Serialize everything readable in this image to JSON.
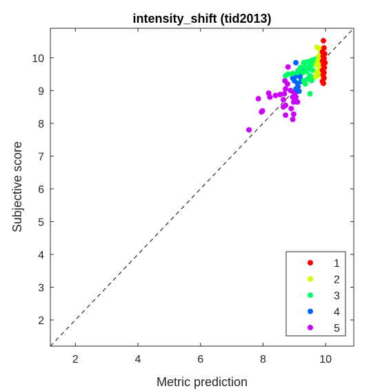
{
  "chart_data": {
    "type": "scatter",
    "title": "intensity_shift (tid2013)",
    "xlabel": "Metric prediction",
    "ylabel": "Subjective score",
    "xlim": [
      1.2,
      10.9
    ],
    "ylim": [
      1.2,
      10.9
    ],
    "xticks": [
      2,
      4,
      6,
      8,
      10
    ],
    "yticks": [
      2,
      3,
      4,
      5,
      6,
      7,
      8,
      9,
      10
    ],
    "grid": false,
    "legend_position": "bottom-right",
    "reference_line": "y = x (dashed)",
    "series": [
      {
        "name": "1",
        "color": "#ff0000",
        "points": [
          [
            9.93,
            10.52
          ],
          [
            9.95,
            10.3
          ],
          [
            9.9,
            10.18
          ],
          [
            9.97,
            10.12
          ],
          [
            9.92,
            10.05
          ],
          [
            9.95,
            9.98
          ],
          [
            9.9,
            9.9
          ],
          [
            9.98,
            9.85
          ],
          [
            9.93,
            9.78
          ],
          [
            9.96,
            9.7
          ],
          [
            9.9,
            9.62
          ],
          [
            9.95,
            9.55
          ],
          [
            9.92,
            9.48
          ],
          [
            9.95,
            9.38
          ],
          [
            9.9,
            9.28
          ],
          [
            9.93,
            9.22
          ]
        ]
      },
      {
        "name": "2",
        "color": "#ccff00",
        "points": [
          [
            9.72,
            10.32
          ],
          [
            9.8,
            10.28
          ],
          [
            9.85,
            10.15
          ],
          [
            9.78,
            10.05
          ],
          [
            9.88,
            9.98
          ],
          [
            9.75,
            9.92
          ],
          [
            9.82,
            9.85
          ],
          [
            9.7,
            9.78
          ],
          [
            9.85,
            9.7
          ],
          [
            9.78,
            9.62
          ],
          [
            9.72,
            9.55
          ],
          [
            9.8,
            9.48
          ],
          [
            9.88,
            9.45
          ],
          [
            9.68,
            9.42
          ]
        ]
      },
      {
        "name": "3",
        "color": "#00ff66",
        "points": [
          [
            9.65,
            9.95
          ],
          [
            9.55,
            9.92
          ],
          [
            9.42,
            9.88
          ],
          [
            9.3,
            9.85
          ],
          [
            9.6,
            9.8
          ],
          [
            9.5,
            9.75
          ],
          [
            9.35,
            9.72
          ],
          [
            9.2,
            9.7
          ],
          [
            9.45,
            9.68
          ],
          [
            9.58,
            9.62
          ],
          [
            9.4,
            9.58
          ],
          [
            9.28,
            9.55
          ],
          [
            9.1,
            9.55
          ],
          [
            8.95,
            9.52
          ],
          [
            8.8,
            9.5
          ],
          [
            8.72,
            9.45
          ],
          [
            9.5,
            9.45
          ],
          [
            9.6,
            9.4
          ],
          [
            9.42,
            9.35
          ],
          [
            9.3,
            9.3
          ],
          [
            9.55,
            9.3
          ],
          [
            9.35,
            9.2
          ],
          [
            9.5,
            8.9
          ],
          [
            9.15,
            9.62
          ]
        ]
      },
      {
        "name": "4",
        "color": "#0066ff",
        "points": [
          [
            9.05,
            9.85
          ],
          [
            9.2,
            9.7
          ],
          [
            9.3,
            9.65
          ],
          [
            9.12,
            9.6
          ],
          [
            9.25,
            9.55
          ],
          [
            9.05,
            9.45
          ],
          [
            9.18,
            9.42
          ],
          [
            8.95,
            9.38
          ],
          [
            9.0,
            9.3
          ],
          [
            9.22,
            9.28
          ],
          [
            9.1,
            9.22
          ],
          [
            9.12,
            9.12
          ],
          [
            9.05,
            9.05
          ],
          [
            9.15,
            8.98
          ],
          [
            9.2,
            9.5
          ]
        ]
      },
      {
        "name": "5",
        "color": "#cc00ff",
        "points": [
          [
            8.8,
            9.72
          ],
          [
            8.7,
            9.3
          ],
          [
            8.78,
            9.2
          ],
          [
            8.72,
            9.05
          ],
          [
            8.88,
            9.0
          ],
          [
            8.68,
            8.9
          ],
          [
            8.55,
            8.88
          ],
          [
            8.18,
            8.92
          ],
          [
            8.4,
            8.85
          ],
          [
            7.85,
            8.75
          ],
          [
            8.22,
            8.8
          ],
          [
            8.95,
            8.8
          ],
          [
            9.05,
            8.8
          ],
          [
            8.65,
            8.72
          ],
          [
            8.98,
            8.65
          ],
          [
            9.1,
            8.65
          ],
          [
            8.72,
            8.55
          ],
          [
            8.65,
            8.5
          ],
          [
            7.98,
            8.38
          ],
          [
            7.95,
            8.35
          ],
          [
            8.98,
            8.28
          ],
          [
            8.72,
            8.25
          ],
          [
            8.95,
            8.12
          ],
          [
            7.55,
            7.8
          ],
          [
            9.02,
            8.9
          ],
          [
            8.9,
            8.45
          ]
        ]
      }
    ]
  }
}
